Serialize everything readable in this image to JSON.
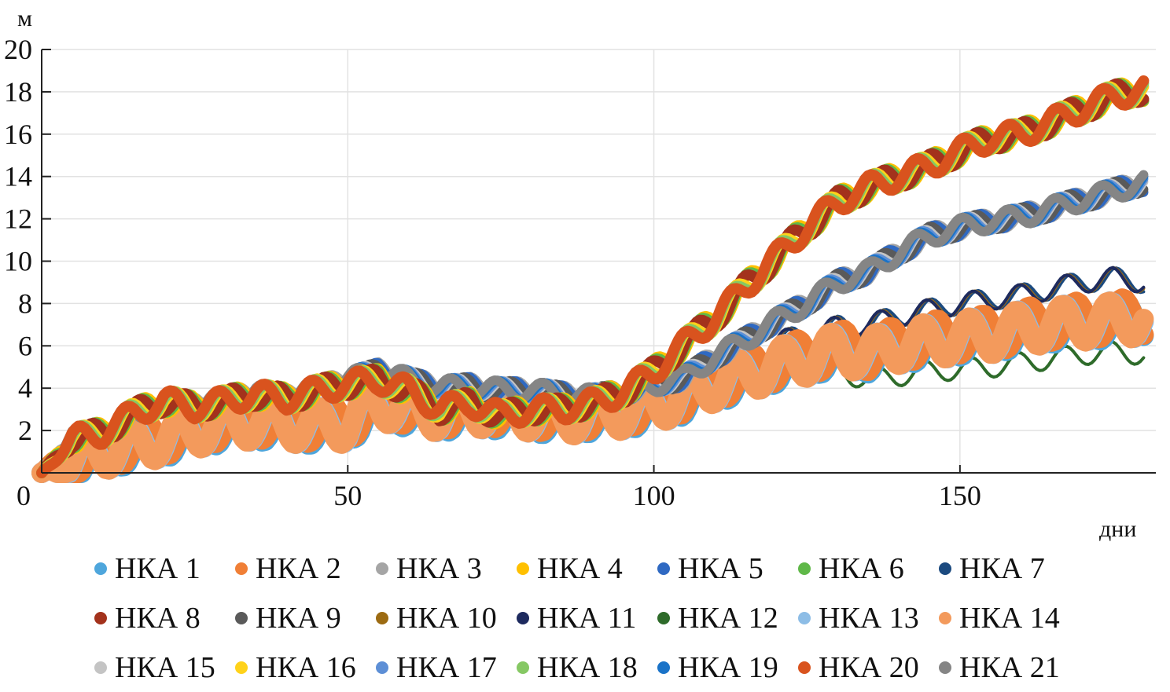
{
  "chart_data": {
    "type": "line",
    "ylabel": "м",
    "xlabel": "дни",
    "xlim": [
      0,
      182
    ],
    "ylim": [
      0,
      20
    ],
    "x_ticks": [
      0,
      50,
      100,
      150
    ],
    "y_ticks": [
      2,
      4,
      6,
      8,
      10,
      12,
      14,
      16,
      18,
      20
    ],
    "grid": true,
    "legend_position": "bottom",
    "x": [
      0,
      5,
      10,
      15,
      20,
      25,
      30,
      35,
      40,
      45,
      50,
      55,
      60,
      65,
      70,
      75,
      80,
      85,
      90,
      95,
      100,
      105,
      110,
      115,
      120,
      125,
      130,
      135,
      140,
      145,
      150,
      155,
      160,
      165,
      170,
      175,
      180
    ],
    "series": [
      {
        "name": "НКА 1",
        "color": "#4ea6dc",
        "group": "low",
        "values": [
          0,
          0.5,
          1.0,
          1.3,
          1.6,
          2.0,
          2.3,
          2.4,
          2.3,
          2.2,
          2.3,
          3.3,
          3.0,
          2.8,
          3.0,
          2.9,
          2.8,
          2.6,
          2.8,
          2.9,
          3.2,
          3.6,
          4.2,
          4.6,
          5.1,
          5.4,
          5.8,
          5.6,
          6.0,
          6.2,
          6.4,
          6.5,
          6.8,
          7.0,
          7.1,
          7.2,
          7.3
        ]
      },
      {
        "name": "НКА 2",
        "color": "#f07f36",
        "group": "low",
        "values": [
          0,
          0.6,
          1.1,
          1.4,
          1.7,
          2.1,
          2.4,
          2.5,
          2.4,
          2.3,
          2.4,
          3.4,
          3.1,
          2.9,
          3.1,
          3.0,
          2.9,
          2.7,
          2.9,
          3.0,
          3.3,
          3.7,
          4.3,
          4.7,
          5.2,
          5.5,
          5.9,
          5.7,
          6.1,
          6.3,
          6.5,
          6.6,
          6.9,
          7.1,
          7.2,
          7.3,
          7.4
        ]
      },
      {
        "name": "НКА 3",
        "color": "#a5a5a5",
        "group": "mid",
        "values": [
          0,
          1.7,
          1.8,
          2.7,
          3.4,
          3.2,
          3.5,
          3.8,
          3.6,
          4.0,
          4.4,
          4.8,
          4.4,
          4.0,
          4.1,
          3.9,
          3.9,
          3.7,
          3.6,
          3.8,
          4.2,
          4.5,
          5.5,
          6.3,
          7.2,
          8.0,
          9.0,
          9.5,
          10.4,
          11.2,
          11.6,
          11.9,
          12.1,
          12.5,
          12.9,
          13.3,
          13.7
        ]
      },
      {
        "name": "НКА 4",
        "color": "#ffc000",
        "group": "high",
        "values": [
          0,
          1.6,
          1.9,
          2.8,
          3.4,
          3.1,
          3.4,
          3.7,
          3.5,
          3.9,
          4.2,
          4.4,
          3.9,
          3.0,
          3.3,
          2.7,
          3.0,
          3.0,
          3.3,
          3.8,
          4.8,
          6.1,
          7.3,
          8.8,
          10.2,
          11.6,
          12.8,
          13.5,
          14.0,
          14.5,
          15.2,
          15.8,
          16.0,
          16.6,
          17.2,
          17.8,
          18.1
        ]
      },
      {
        "name": "НКА 5",
        "color": "#2f69c2",
        "group": "mid",
        "values": [
          0,
          1.7,
          1.8,
          2.7,
          3.4,
          3.2,
          3.5,
          3.8,
          3.6,
          4.0,
          4.4,
          4.8,
          4.4,
          4.0,
          4.1,
          3.9,
          3.9,
          3.7,
          3.6,
          3.8,
          4.2,
          4.5,
          5.5,
          6.3,
          7.2,
          8.0,
          9.0,
          9.5,
          10.4,
          11.2,
          11.6,
          11.9,
          12.1,
          12.5,
          12.9,
          13.3,
          13.7
        ]
      },
      {
        "name": "НКА 6",
        "color": "#5fb848",
        "group": "high",
        "values": [
          0,
          1.6,
          1.9,
          2.8,
          3.4,
          3.1,
          3.4,
          3.7,
          3.5,
          3.9,
          4.2,
          4.4,
          3.9,
          3.0,
          3.3,
          2.7,
          3.0,
          3.0,
          3.3,
          3.8,
          4.8,
          6.1,
          7.3,
          8.8,
          10.2,
          11.6,
          12.8,
          13.5,
          14.0,
          14.5,
          15.2,
          15.8,
          16.0,
          16.6,
          17.2,
          17.8,
          18.1
        ]
      },
      {
        "name": "НКА 7",
        "color": "#1b4a7f",
        "group": "lowtop",
        "values": [
          0,
          0.8,
          1.3,
          1.6,
          1.9,
          2.3,
          2.6,
          2.7,
          2.6,
          2.5,
          2.6,
          3.6,
          3.3,
          3.1,
          3.3,
          3.2,
          3.1,
          2.9,
          3.1,
          3.2,
          3.5,
          4.2,
          5.0,
          5.6,
          6.2,
          6.5,
          6.9,
          7.0,
          7.4,
          7.7,
          8.0,
          8.2,
          8.4,
          8.7,
          9.0,
          9.2,
          9.0
        ]
      },
      {
        "name": "НКА 8",
        "color": "#a3321c",
        "group": "high",
        "values": [
          0,
          1.6,
          1.9,
          2.8,
          3.4,
          3.1,
          3.4,
          3.7,
          3.5,
          3.9,
          4.2,
          4.4,
          3.9,
          3.0,
          3.3,
          2.7,
          3.0,
          3.0,
          3.3,
          3.8,
          4.8,
          6.1,
          7.3,
          8.8,
          10.2,
          11.6,
          12.8,
          13.5,
          14.0,
          14.5,
          15.2,
          15.8,
          16.0,
          16.6,
          17.2,
          17.8,
          18.1
        ]
      },
      {
        "name": "НКА 9",
        "color": "#5a5a5a",
        "group": "mid",
        "values": [
          0,
          1.7,
          1.8,
          2.7,
          3.4,
          3.2,
          3.5,
          3.8,
          3.6,
          4.0,
          4.4,
          4.8,
          4.4,
          4.0,
          4.1,
          3.9,
          3.9,
          3.7,
          3.6,
          3.8,
          4.2,
          4.5,
          5.5,
          6.3,
          7.2,
          8.0,
          9.0,
          9.5,
          10.4,
          11.2,
          11.6,
          11.9,
          12.1,
          12.5,
          12.9,
          13.3,
          13.7
        ]
      },
      {
        "name": "НКА 10",
        "color": "#9c6b12",
        "group": "lowtop",
        "values": [
          0,
          0.8,
          1.3,
          1.6,
          1.9,
          2.3,
          2.6,
          2.7,
          2.6,
          2.5,
          2.6,
          3.6,
          3.3,
          3.1,
          3.3,
          3.2,
          3.1,
          2.9,
          3.1,
          3.2,
          3.5,
          4.2,
          5.0,
          5.6,
          6.2,
          6.5,
          6.9,
          7.0,
          7.4,
          7.7,
          8.0,
          8.2,
          8.4,
          8.7,
          9.0,
          9.2,
          9.0
        ]
      },
      {
        "name": "НКА 11",
        "color": "#1d2a5e",
        "group": "lowtop",
        "values": [
          0,
          0.8,
          1.3,
          1.6,
          1.9,
          2.3,
          2.6,
          2.7,
          2.6,
          2.5,
          2.6,
          3.6,
          3.3,
          3.1,
          3.3,
          3.2,
          3.1,
          2.9,
          3.1,
          3.2,
          3.5,
          4.2,
          5.0,
          5.6,
          6.2,
          6.5,
          6.9,
          7.0,
          7.4,
          7.7,
          8.0,
          8.2,
          8.4,
          8.7,
          9.0,
          9.2,
          9.0
        ]
      },
      {
        "name": "НКА 12",
        "color": "#2e6b2a",
        "group": "lowbot",
        "values": [
          0,
          0.3,
          0.6,
          0.9,
          1.2,
          1.6,
          1.9,
          2.0,
          1.9,
          1.8,
          1.9,
          2.9,
          2.6,
          2.4,
          2.6,
          2.5,
          2.4,
          2.2,
          2.4,
          2.5,
          2.8,
          3.0,
          3.4,
          3.8,
          4.3,
          4.6,
          4.8,
          4.4,
          4.6,
          4.8,
          4.9,
          5.0,
          5.2,
          5.4,
          5.6,
          5.7,
          5.6
        ]
      },
      {
        "name": "НКА 13",
        "color": "#8dbde6",
        "group": "low",
        "values": [
          0,
          0.5,
          1.0,
          1.3,
          1.6,
          2.0,
          2.3,
          2.4,
          2.3,
          2.2,
          2.3,
          3.3,
          3.0,
          2.8,
          3.0,
          2.9,
          2.8,
          2.6,
          2.8,
          2.9,
          3.2,
          3.6,
          4.2,
          4.6,
          5.1,
          5.4,
          5.8,
          5.6,
          6.0,
          6.2,
          6.4,
          6.5,
          6.8,
          7.0,
          7.1,
          7.2,
          7.3
        ]
      },
      {
        "name": "НКА 14",
        "color": "#f39a5c",
        "group": "low",
        "values": [
          0,
          0.5,
          1.0,
          1.3,
          1.6,
          2.0,
          2.3,
          2.4,
          2.3,
          2.2,
          2.3,
          3.3,
          3.0,
          2.8,
          3.0,
          2.9,
          2.8,
          2.6,
          2.8,
          2.9,
          3.2,
          3.6,
          4.2,
          4.6,
          5.1,
          5.4,
          5.8,
          5.6,
          6.0,
          6.2,
          6.4,
          6.5,
          6.8,
          7.0,
          7.1,
          7.2,
          7.3
        ]
      },
      {
        "name": "НКА 15",
        "color": "#c4c4c4",
        "group": "mid",
        "values": [
          0,
          1.7,
          1.8,
          2.7,
          3.4,
          3.2,
          3.5,
          3.8,
          3.6,
          4.0,
          4.4,
          4.8,
          4.4,
          4.0,
          4.1,
          3.9,
          3.9,
          3.7,
          3.6,
          3.8,
          4.2,
          4.5,
          5.5,
          6.3,
          7.2,
          8.0,
          9.0,
          9.5,
          10.4,
          11.2,
          11.6,
          11.9,
          12.1,
          12.5,
          12.9,
          13.3,
          13.7
        ]
      },
      {
        "name": "НКА 16",
        "color": "#ffd21a",
        "group": "high",
        "values": [
          0,
          1.6,
          1.9,
          2.8,
          3.4,
          3.1,
          3.4,
          3.7,
          3.5,
          3.9,
          4.2,
          4.4,
          3.9,
          3.0,
          3.3,
          2.7,
          3.0,
          3.0,
          3.3,
          3.8,
          4.8,
          6.1,
          7.3,
          8.8,
          10.2,
          11.6,
          12.8,
          13.5,
          14.0,
          14.5,
          15.2,
          15.8,
          16.0,
          16.6,
          17.2,
          17.8,
          18.1
        ]
      },
      {
        "name": "НКА 17",
        "color": "#5d8fd6",
        "group": "mid",
        "values": [
          0,
          1.7,
          1.8,
          2.7,
          3.4,
          3.2,
          3.5,
          3.8,
          3.6,
          4.0,
          4.4,
          4.8,
          4.4,
          4.0,
          4.1,
          3.9,
          3.9,
          3.7,
          3.6,
          3.8,
          4.2,
          4.5,
          5.5,
          6.3,
          7.2,
          8.0,
          9.0,
          9.5,
          10.4,
          11.2,
          11.6,
          11.9,
          12.1,
          12.5,
          12.9,
          13.3,
          13.7
        ]
      },
      {
        "name": "НКА 18",
        "color": "#86c864",
        "group": "high",
        "values": [
          0,
          1.6,
          1.9,
          2.8,
          3.4,
          3.1,
          3.4,
          3.7,
          3.5,
          3.9,
          4.2,
          4.4,
          3.9,
          3.0,
          3.3,
          2.7,
          3.0,
          3.0,
          3.3,
          3.8,
          4.8,
          6.1,
          7.3,
          8.8,
          10.2,
          11.6,
          12.8,
          13.5,
          14.0,
          14.5,
          15.2,
          15.8,
          16.0,
          16.6,
          17.2,
          17.8,
          18.1
        ]
      },
      {
        "name": "НКА 19",
        "color": "#1a73c8",
        "group": "mid",
        "values": [
          0,
          1.7,
          1.8,
          2.7,
          3.4,
          3.2,
          3.5,
          3.8,
          3.6,
          4.0,
          4.4,
          4.8,
          4.4,
          4.0,
          4.1,
          3.9,
          3.9,
          3.7,
          3.6,
          3.8,
          4.2,
          4.5,
          5.5,
          6.3,
          7.2,
          8.0,
          9.0,
          9.5,
          10.4,
          11.2,
          11.6,
          11.9,
          12.1,
          12.5,
          12.9,
          13.3,
          13.7
        ]
      },
      {
        "name": "НКА 20",
        "color": "#d9531e",
        "group": "high",
        "values": [
          0,
          1.6,
          1.9,
          2.8,
          3.4,
          3.1,
          3.4,
          3.7,
          3.5,
          3.9,
          4.2,
          4.4,
          3.9,
          3.0,
          3.3,
          2.7,
          3.0,
          3.0,
          3.3,
          3.8,
          4.8,
          6.1,
          7.3,
          8.8,
          10.2,
          11.6,
          12.8,
          13.5,
          14.0,
          14.5,
          15.2,
          15.8,
          16.0,
          16.6,
          17.2,
          17.8,
          18.1
        ]
      },
      {
        "name": "НКА 21",
        "color": "#858585",
        "group": "mid",
        "values": [
          0,
          1.7,
          1.8,
          2.7,
          3.4,
          3.2,
          3.5,
          3.8,
          3.6,
          4.0,
          4.4,
          4.8,
          4.4,
          4.0,
          4.1,
          3.9,
          3.9,
          3.7,
          3.6,
          3.8,
          4.2,
          4.5,
          5.5,
          6.3,
          7.2,
          8.0,
          9.0,
          9.5,
          10.4,
          11.2,
          11.6,
          11.9,
          12.1,
          12.5,
          12.9,
          13.3,
          13.7
        ]
      }
    ]
  }
}
